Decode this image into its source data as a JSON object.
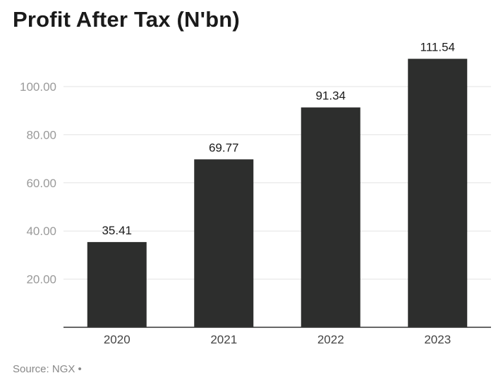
{
  "chart_data": {
    "type": "bar",
    "title": "Profit After Tax (N'bn)",
    "categories": [
      "2020",
      "2021",
      "2022",
      "2023"
    ],
    "values": [
      35.41,
      69.77,
      91.34,
      111.54
    ],
    "value_labels": [
      "35.41",
      "69.77",
      "91.34",
      "111.54"
    ],
    "yticks": [
      20,
      40,
      60,
      80,
      100
    ],
    "ytick_labels": [
      "20.00",
      "40.00",
      "60.00",
      "80.00",
      "100.00"
    ],
    "ylim": [
      0,
      115
    ],
    "grid": true,
    "xlabel": "",
    "ylabel": "",
    "bar_color": "#2d2e2d",
    "grid_color": "#e3e3e3"
  },
  "source": {
    "text": "Source: NGX",
    "bullet": "•"
  }
}
